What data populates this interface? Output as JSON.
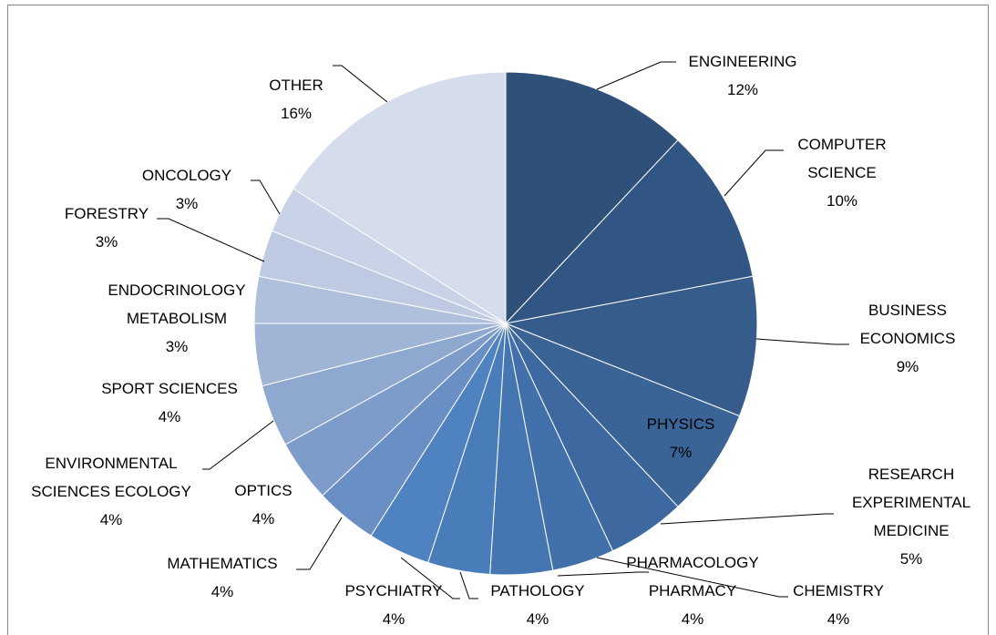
{
  "chart_data": {
    "type": "pie",
    "categories": [
      "ENGINEERING",
      "COMPUTER SCIENCE",
      "BUSINESS ECONOMICS",
      "PHYSICS",
      "RESEARCH EXPERIMENTAL MEDICINE",
      "CHEMISTRY",
      "PHARMACOLOGY PHARMACY",
      "PATHOLOGY",
      "PSYCHIATRY",
      "MATHEMATICS",
      "OPTICS",
      "ENVIRONMENTAL SCIENCES ECOLOGY",
      "SPORT SCIENCES",
      "ENDOCRINOLOGY METABOLISM",
      "FORESTRY",
      "ONCOLOGY",
      "OTHER"
    ],
    "values": [
      12,
      10,
      9,
      7,
      5,
      4,
      4,
      4,
      4,
      4,
      4,
      4,
      4,
      3,
      3,
      3,
      16
    ],
    "value_labels": [
      "12%",
      "10%",
      "9%",
      "7%",
      "5%",
      "4%",
      "4%",
      "4%",
      "4%",
      "4%",
      "4%",
      "4%",
      "4%",
      "3%",
      "3%",
      "3%",
      "16%"
    ],
    "colors": [
      "#2f5079",
      "#325683",
      "#365c8c",
      "#3a6396",
      "#3d69a0",
      "#4170aa",
      "#4576b2",
      "#497dba",
      "#4f82c0",
      "#6a8fc4",
      "#7d9cca",
      "#8fa8d0",
      "#a0b4d6",
      "#afc0dc",
      "#bdcae2",
      "#c9d3e7",
      "#d5dcec"
    ]
  }
}
